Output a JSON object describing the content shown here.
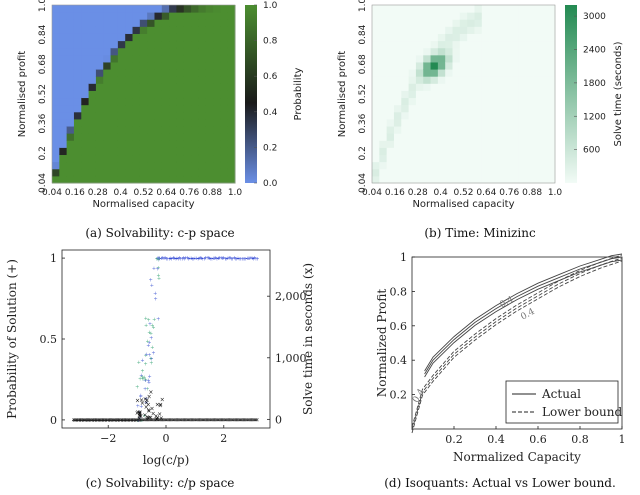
{
  "colors": {
    "solv_low": "#6a8fe6",
    "solv_high": "#4c8e30",
    "solv_edge": "#222222",
    "time_low": "#f2fbf6",
    "time_high": "#238a52"
  },
  "captions": {
    "a": "(a) Solvability: c-p space",
    "b": "(b) Time: Minizinc",
    "c": "(c) Solvability: c/p space",
    "d": "(d) Isoquants: Actual vs Lower bound."
  },
  "chart_data": [
    {
      "id": "a",
      "type": "heatmap",
      "title": "Solvability: c-p space",
      "xlabel": "Normalised capacity",
      "ylabel": "Normalised profit",
      "xticks": [
        "0.04",
        "0.16",
        "0.28",
        "0.4",
        "0.52",
        "0.64",
        "0.76",
        "0.88",
        "1.0"
      ],
      "yticks": [
        "0.04",
        "0.2",
        "0.36",
        "0.52",
        "0.68",
        "0.84",
        "1.0"
      ],
      "grid_size": 25,
      "colorbar": {
        "label": "Probability",
        "ticks": [
          "0.0",
          "0.2",
          "0.4",
          "0.6",
          "0.8",
          "1.0"
        ],
        "range": [
          0,
          1
        ]
      },
      "boundary": "p = 1 - (1 - c)^3; probability 1 below boundary, 0 above, transition band dark"
    },
    {
      "id": "b",
      "type": "heatmap",
      "title": "Time: Minizinc",
      "xlabel": "Normalised capacity",
      "ylabel": "Normalised profit",
      "xticks": [
        "0.04",
        "0.16",
        "0.28",
        "0.4",
        "0.52",
        "0.64",
        "0.76",
        "0.88",
        "1.0"
      ],
      "yticks": [
        "0.04",
        "0.2",
        "0.36",
        "0.52",
        "0.68",
        "0.84",
        "1.0"
      ],
      "grid_size": 25,
      "colorbar": {
        "label": "Solve time (seconds)",
        "ticks": [
          "600",
          "1200",
          "1800",
          "2400",
          "3000"
        ],
        "range": [
          0,
          3200
        ]
      },
      "peak": {
        "capacity": 0.34,
        "profit": 0.66,
        "value": 3100
      }
    },
    {
      "id": "c",
      "type": "scatter",
      "title": "Solvability: c/p space",
      "xlabel": "log(c/p)",
      "ylabel_left": "Probability of Solution (+)",
      "ylabel_right": "Solve time in seconds (x)",
      "xlim": [
        -3.6,
        3.6
      ],
      "ylim_left": [
        -0.05,
        1.05
      ],
      "ylim_right": [
        -140,
        2750
      ],
      "xticks": [
        "−2",
        "0",
        "2"
      ],
      "yticks_left": [
        "0",
        "0.5",
        "1"
      ],
      "yticks_right": [
        "0",
        "1,000",
        "2,000"
      ],
      "transition": {
        "start": -1.0,
        "end": -0.2
      }
    },
    {
      "id": "d",
      "type": "line",
      "title": "Isoquants: Actual vs Lower bound",
      "xlabel": "Normalized Capacity",
      "ylabel": "Normalized Profit",
      "xlim": [
        0,
        1
      ],
      "ylim": [
        0,
        1
      ],
      "xticks": [
        "0.2",
        "0.4",
        "0.6",
        "0.8",
        "1"
      ],
      "yticks": [
        "0.2",
        "0.4",
        "0.6",
        "0.8",
        "1"
      ],
      "contour_labels": [
        "0.4",
        "0.4",
        "0.4"
      ],
      "series": [
        {
          "name": "Actual",
          "style": "solid",
          "x": [
            0.06,
            0.1,
            0.2,
            0.3,
            0.4,
            0.5,
            0.6,
            0.7,
            0.8,
            0.9,
            0.95,
            1.0
          ],
          "y": [
            0.32,
            0.4,
            0.52,
            0.62,
            0.7,
            0.77,
            0.83,
            0.88,
            0.93,
            0.97,
            0.99,
            1.0
          ]
        },
        {
          "name": "Lower bound",
          "style": "dashed",
          "x": [
            0.0,
            0.05,
            0.1,
            0.2,
            0.3,
            0.4,
            0.5,
            0.6,
            0.7,
            0.8,
            0.9,
            1.0
          ],
          "y": [
            0.0,
            0.22,
            0.3,
            0.44,
            0.54,
            0.63,
            0.71,
            0.78,
            0.85,
            0.91,
            0.96,
            1.0
          ]
        }
      ]
    }
  ]
}
